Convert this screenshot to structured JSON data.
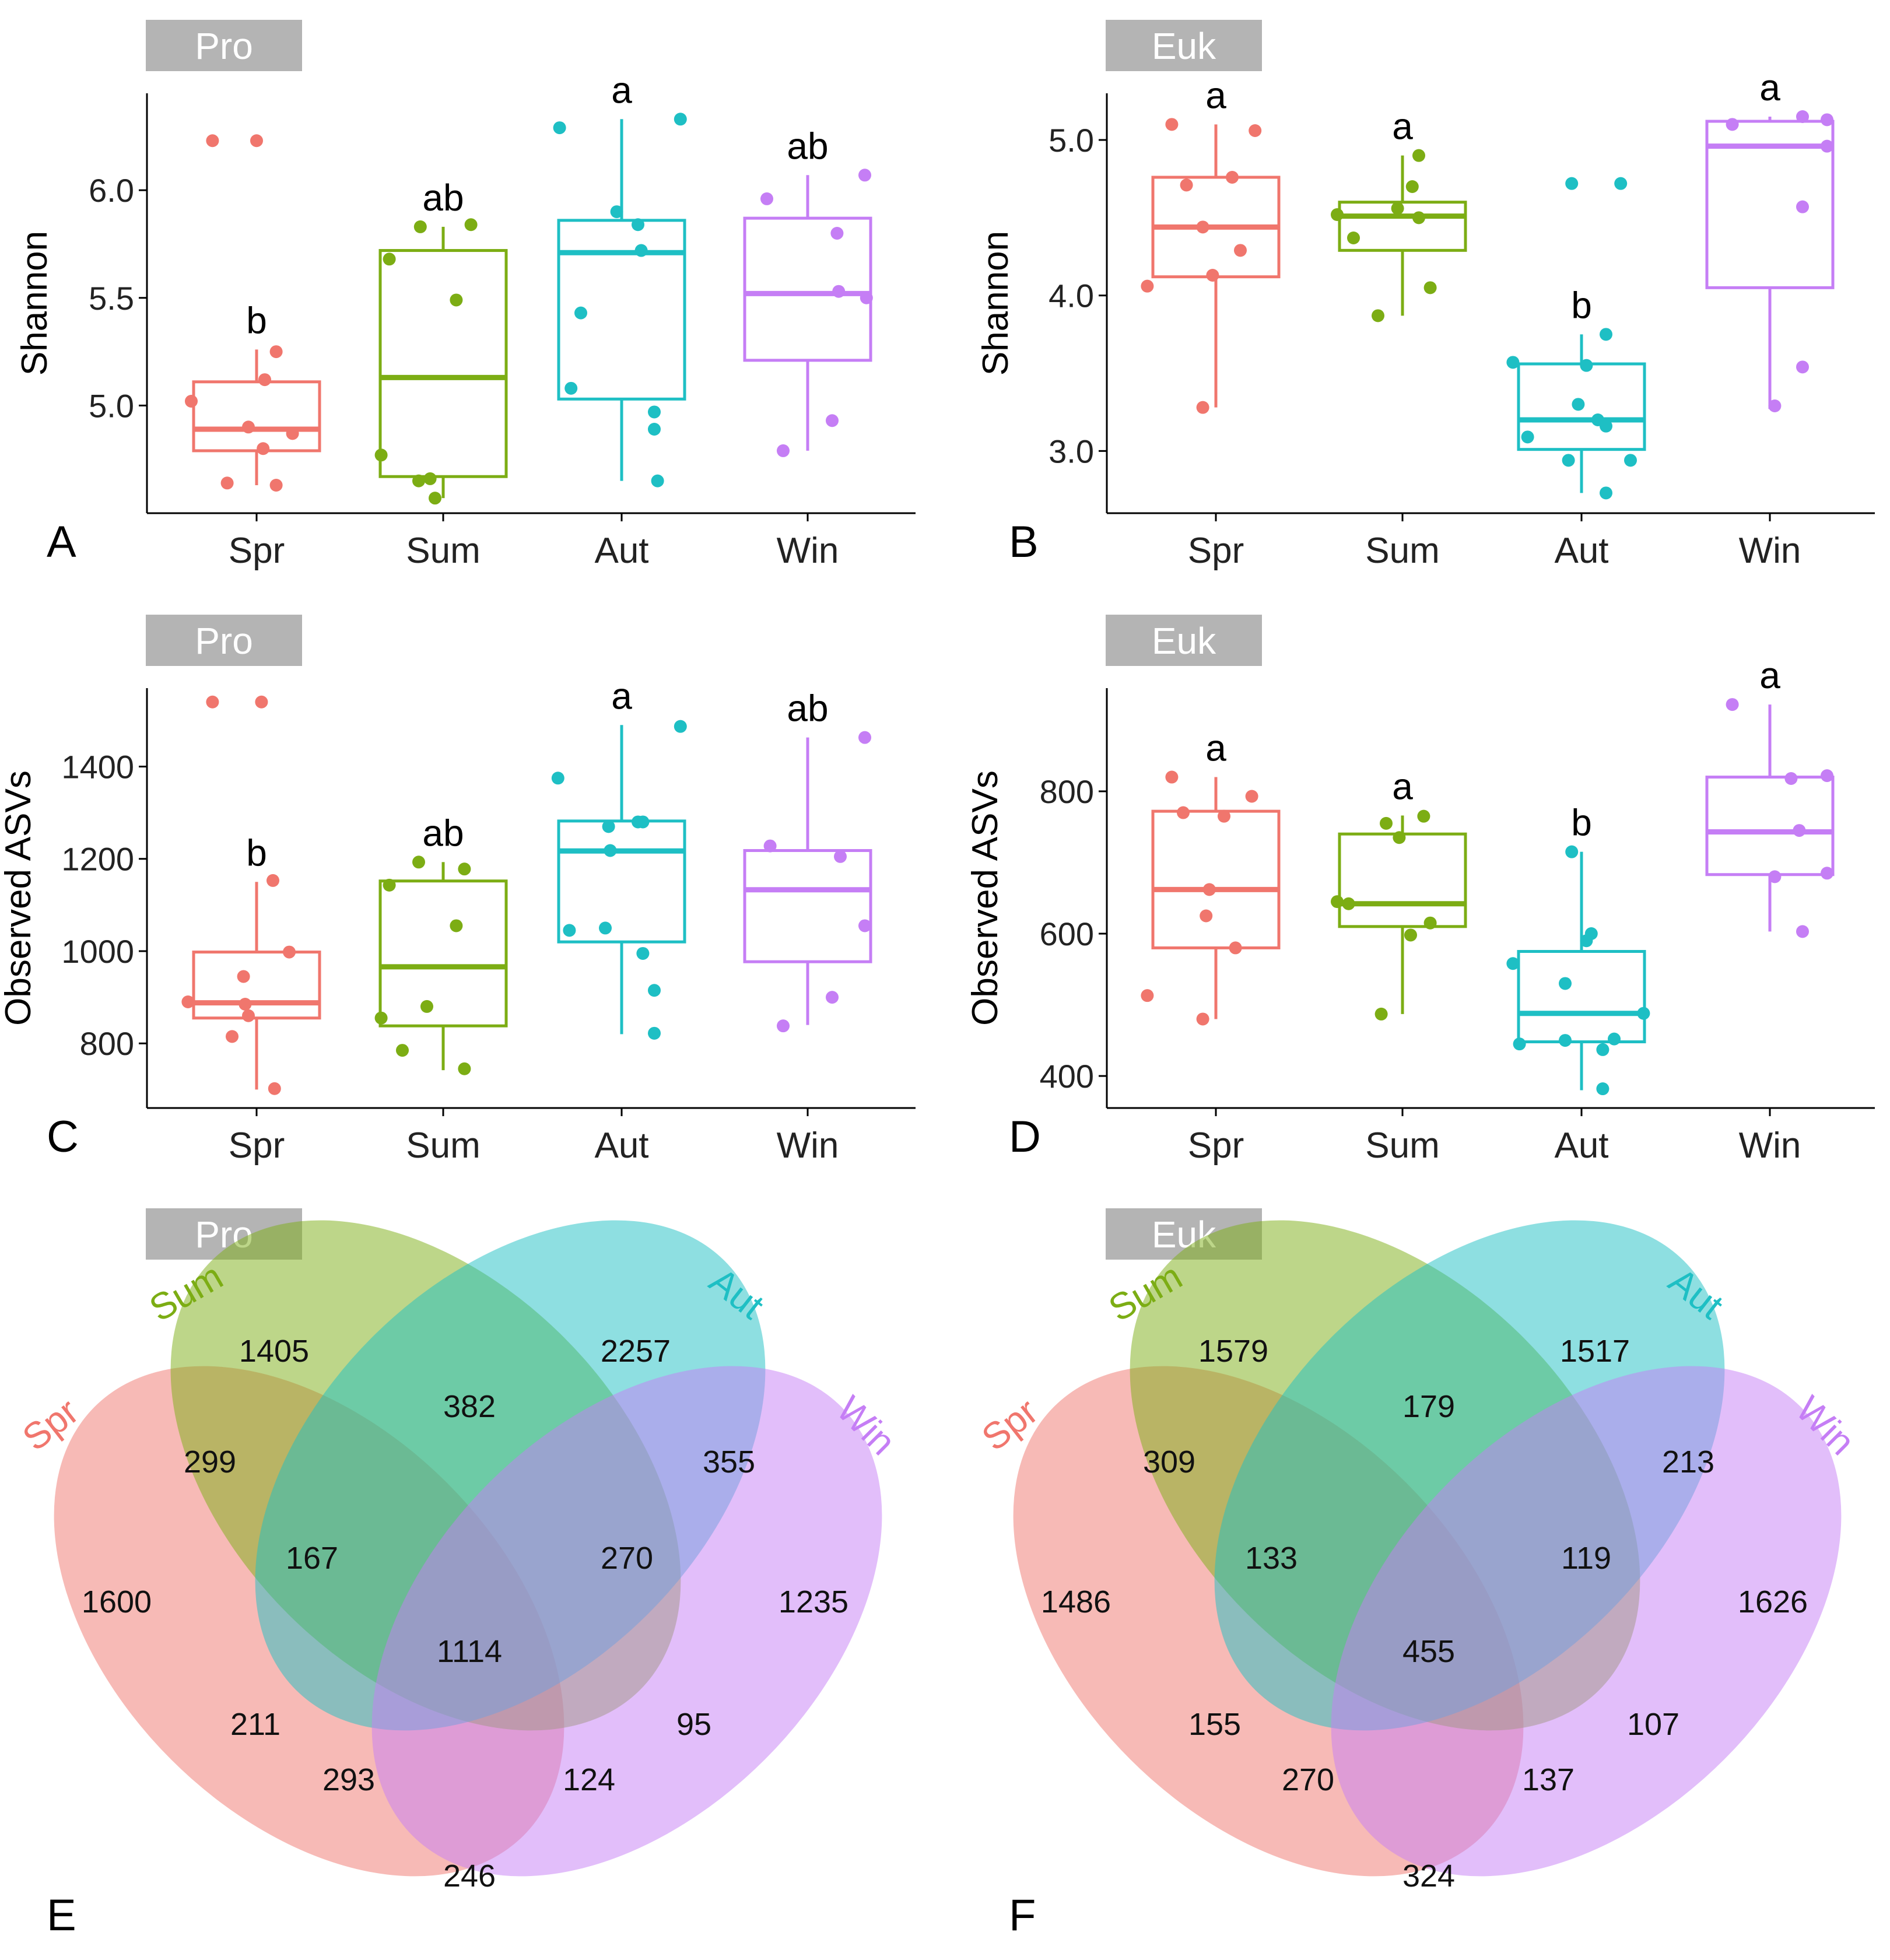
{
  "colors": {
    "spr": "#f0766d",
    "sum": "#7cad14",
    "aut": "#1ebfc4",
    "win": "#c57ef5",
    "strip": "#b4b4b4"
  },
  "chart_data": [
    {
      "type": "box",
      "panel_letter": "A",
      "strip_label": "Pro",
      "ylabel": "Shannon",
      "ylim": [
        4.5,
        6.45
      ],
      "yticks": [
        5.0,
        5.5,
        6.0
      ],
      "ytick_labels": [
        "5.0",
        "5.5",
        "6.0"
      ],
      "categories": [
        "Spr",
        "Sum",
        "Aut",
        "Win"
      ],
      "boxes": [
        {
          "min": 4.63,
          "q1": 4.79,
          "median": 4.89,
          "q3": 5.11,
          "max": 5.26,
          "letter": "b"
        },
        {
          "min": 4.57,
          "q1": 4.67,
          "median": 5.13,
          "q3": 5.72,
          "max": 5.83,
          "letter": "ab"
        },
        {
          "min": 4.65,
          "q1": 5.03,
          "median": 5.71,
          "q3": 5.86,
          "max": 6.33,
          "letter": "a"
        },
        {
          "min": 4.79,
          "q1": 5.21,
          "median": 5.52,
          "q3": 5.87,
          "max": 6.07,
          "letter": "ab"
        }
      ],
      "points": [
        [
          [
            -0.4,
            5.02
          ],
          [
            -0.18,
            4.64
          ],
          [
            0.12,
            4.63
          ],
          [
            0.04,
            4.8
          ],
          [
            -0.05,
            4.9
          ],
          [
            0.05,
            5.12
          ],
          [
            0.22,
            4.87
          ],
          [
            0.12,
            5.25
          ],
          [
            -0.27,
            6.23
          ],
          [
            0.0,
            6.23
          ]
        ],
        [
          [
            -0.38,
            4.77
          ],
          [
            -0.33,
            5.68
          ],
          [
            -0.15,
            4.65
          ],
          [
            -0.05,
            4.57
          ],
          [
            -0.08,
            4.66
          ],
          [
            -0.14,
            5.83
          ],
          [
            0.08,
            5.49
          ],
          [
            0.17,
            5.84
          ]
        ],
        [
          [
            -0.38,
            6.29
          ],
          [
            -0.31,
            5.08
          ],
          [
            -0.25,
            5.43
          ],
          [
            -0.03,
            5.9
          ],
          [
            0.1,
            5.84
          ],
          [
            0.12,
            5.72
          ],
          [
            0.2,
            4.97
          ],
          [
            0.2,
            4.89
          ],
          [
            0.22,
            4.65
          ],
          [
            0.36,
            6.33
          ]
        ],
        [
          [
            -0.25,
            5.96
          ],
          [
            -0.15,
            4.79
          ],
          [
            0.15,
            4.93
          ],
          [
            0.18,
            5.8
          ],
          [
            0.19,
            5.53
          ],
          [
            0.36,
            5.5
          ],
          [
            0.35,
            6.07
          ]
        ]
      ]
    },
    {
      "type": "box",
      "panel_letter": "B",
      "strip_label": "Euk",
      "ylabel": "Shannon",
      "ylim": [
        2.6,
        5.3
      ],
      "yticks": [
        3.0,
        4.0,
        5.0
      ],
      "ytick_labels": [
        "3.0",
        "4.0",
        "5.0"
      ],
      "categories": [
        "Spr",
        "Sum",
        "Aut",
        "Win"
      ],
      "boxes": [
        {
          "min": 3.28,
          "q1": 4.12,
          "median": 4.44,
          "q3": 4.76,
          "max": 5.1,
          "letter": "a"
        },
        {
          "min": 3.87,
          "q1": 4.29,
          "median": 4.51,
          "q3": 4.6,
          "max": 4.9,
          "letter": "a"
        },
        {
          "min": 2.73,
          "q1": 3.01,
          "median": 3.2,
          "q3": 3.56,
          "max": 3.75,
          "letter": "b"
        },
        {
          "min": 3.27,
          "q1": 4.05,
          "median": 4.96,
          "q3": 5.12,
          "max": 5.15,
          "letter": "a"
        }
      ],
      "points": [
        [
          [
            -0.42,
            4.06
          ],
          [
            -0.27,
            5.1
          ],
          [
            -0.18,
            4.71
          ],
          [
            -0.08,
            3.28
          ],
          [
            -0.08,
            4.44
          ],
          [
            -0.02,
            4.13
          ],
          [
            0.1,
            4.76
          ],
          [
            0.15,
            4.29
          ],
          [
            0.24,
            5.06
          ]
        ],
        [
          [
            -0.4,
            4.52
          ],
          [
            -0.3,
            4.37
          ],
          [
            -0.15,
            3.87
          ],
          [
            -0.03,
            4.56
          ],
          [
            0.06,
            4.7
          ],
          [
            0.1,
            4.5
          ],
          [
            0.1,
            4.9
          ],
          [
            0.17,
            4.05
          ]
        ],
        [
          [
            -0.42,
            3.57
          ],
          [
            -0.33,
            3.09
          ],
          [
            -0.06,
            4.72
          ],
          [
            -0.08,
            2.94
          ],
          [
            -0.02,
            3.3
          ],
          [
            0.03,
            3.55
          ],
          [
            0.15,
            3.75
          ],
          [
            0.15,
            3.16
          ],
          [
            0.1,
            3.2
          ],
          [
            0.24,
            4.72
          ],
          [
            0.15,
            2.73
          ],
          [
            0.3,
            2.94
          ]
        ],
        [
          [
            -0.23,
            5.1
          ],
          [
            0.03,
            3.29
          ],
          [
            0.2,
            5.15
          ],
          [
            0.2,
            4.57
          ],
          [
            0.2,
            3.54
          ],
          [
            0.35,
            5.13
          ],
          [
            0.35,
            4.96
          ]
        ]
      ]
    },
    {
      "type": "box",
      "panel_letter": "C",
      "strip_label": "Pro",
      "ylabel": "Observed ASVs",
      "ylim": [
        660,
        1570
      ],
      "yticks": [
        800,
        1000,
        1200,
        1400
      ],
      "ytick_labels": [
        "800",
        "1000",
        "1200",
        "1400"
      ],
      "categories": [
        "Spr",
        "Sum",
        "Aut",
        "Win"
      ],
      "boxes": [
        {
          "min": 700,
          "q1": 855,
          "median": 888,
          "q3": 998,
          "max": 1150,
          "letter": "b"
        },
        {
          "min": 742,
          "q1": 838,
          "median": 966,
          "q3": 1152,
          "max": 1193,
          "letter": "ab"
        },
        {
          "min": 820,
          "q1": 1020,
          "median": 1217,
          "q3": 1282,
          "max": 1490,
          "letter": "a"
        },
        {
          "min": 840,
          "q1": 977,
          "median": 1133,
          "q3": 1218,
          "max": 1463,
          "letter": "ab"
        }
      ],
      "points": [
        [
          [
            -0.42,
            890
          ],
          [
            -0.27,
            1540
          ],
          [
            -0.15,
            815
          ],
          [
            -0.08,
            945
          ],
          [
            -0.05,
            860
          ],
          [
            -0.07,
            885
          ],
          [
            0.03,
            1540
          ],
          [
            0.1,
            1153
          ],
          [
            0.11,
            702
          ],
          [
            0.2,
            998
          ]
        ],
        [
          [
            -0.38,
            855
          ],
          [
            -0.33,
            1143
          ],
          [
            -0.25,
            785
          ],
          [
            -0.15,
            1193
          ],
          [
            -0.1,
            880
          ],
          [
            0.08,
            1055
          ],
          [
            0.13,
            1178
          ],
          [
            0.13,
            745
          ]
        ],
        [
          [
            -0.39,
            1375
          ],
          [
            -0.32,
            1045
          ],
          [
            -0.07,
            1218
          ],
          [
            -0.08,
            1270
          ],
          [
            -0.1,
            1050
          ],
          [
            0.1,
            1280
          ],
          [
            0.13,
            1280
          ],
          [
            0.13,
            995
          ],
          [
            0.2,
            915
          ],
          [
            0.2,
            822
          ],
          [
            0.36,
            1487
          ]
        ],
        [
          [
            -0.23,
            1228
          ],
          [
            -0.15,
            838
          ],
          [
            0.15,
            900
          ],
          [
            0.2,
            1205
          ],
          [
            0.35,
            1055
          ],
          [
            0.35,
            1463
          ]
        ]
      ]
    },
    {
      "type": "box",
      "panel_letter": "D",
      "strip_label": "Euk",
      "ylabel": "Observed ASVs",
      "ylim": [
        355,
        945
      ],
      "yticks": [
        400,
        600,
        800
      ],
      "ytick_labels": [
        "400",
        "600",
        "800"
      ],
      "categories": [
        "Spr",
        "Sum",
        "Aut",
        "Win"
      ],
      "boxes": [
        {
          "min": 480,
          "q1": 580,
          "median": 662,
          "q3": 772,
          "max": 820,
          "letter": "a"
        },
        {
          "min": 487,
          "q1": 610,
          "median": 642,
          "q3": 740,
          "max": 766,
          "letter": "a"
        },
        {
          "min": 380,
          "q1": 448,
          "median": 488,
          "q3": 575,
          "max": 715,
          "letter": "b"
        },
        {
          "min": 603,
          "q1": 683,
          "median": 743,
          "q3": 820,
          "max": 922,
          "letter": "a"
        }
      ],
      "points": [
        [
          [
            -0.42,
            513
          ],
          [
            -0.27,
            820
          ],
          [
            -0.2,
            770
          ],
          [
            -0.08,
            480
          ],
          [
            -0.06,
            625
          ],
          [
            -0.04,
            662
          ],
          [
            0.05,
            765
          ],
          [
            0.12,
            580
          ],
          [
            0.22,
            793
          ]
        ],
        [
          [
            -0.4,
            645
          ],
          [
            -0.33,
            642
          ],
          [
            -0.13,
            487
          ],
          [
            -0.1,
            755
          ],
          [
            -0.02,
            735
          ],
          [
            0.05,
            598
          ],
          [
            0.13,
            765
          ],
          [
            0.17,
            615
          ]
        ],
        [
          [
            -0.42,
            558
          ],
          [
            -0.38,
            445
          ],
          [
            -0.06,
            715
          ],
          [
            -0.1,
            530
          ],
          [
            -0.1,
            450
          ],
          [
            0.03,
            590
          ],
          [
            0.06,
            600
          ],
          [
            0.13,
            437
          ],
          [
            0.2,
            452
          ],
          [
            0.13,
            382
          ],
          [
            0.38,
            488
          ]
        ],
        [
          [
            -0.23,
            922
          ],
          [
            0.03,
            680
          ],
          [
            0.13,
            818
          ],
          [
            0.18,
            745
          ],
          [
            0.2,
            603
          ],
          [
            0.35,
            822
          ],
          [
            0.35,
            685
          ]
        ]
      ]
    },
    {
      "type": "venn",
      "panel_letter": "E",
      "strip_label": "Pro",
      "sets": [
        "Spr",
        "Sum",
        "Aut",
        "Win"
      ],
      "regions": {
        "spr": "1600",
        "sum": "1405",
        "aut": "2257",
        "win": "1235",
        "spr_sum": "299",
        "sum_aut": "382",
        "aut_win": "355",
        "spr_win": "246",
        "spr_sum_aut": "167",
        "sum_aut_win": "270",
        "spr_aut": "211",
        "sum_win": "95",
        "spr_aut_win": "293",
        "spr_sum_win": "124",
        "all": "1114"
      }
    },
    {
      "type": "venn",
      "panel_letter": "F",
      "strip_label": "Euk",
      "sets": [
        "Spr",
        "Sum",
        "Aut",
        "Win"
      ],
      "regions": {
        "spr": "1486",
        "sum": "1579",
        "aut": "1517",
        "win": "1626",
        "spr_sum": "309",
        "sum_aut": "179",
        "aut_win": "213",
        "spr_win": "324",
        "spr_sum_aut": "133",
        "sum_aut_win": "119",
        "spr_aut": "155",
        "sum_win": "107",
        "spr_aut_win": "270",
        "spr_sum_win": "137",
        "all": "455"
      }
    }
  ]
}
